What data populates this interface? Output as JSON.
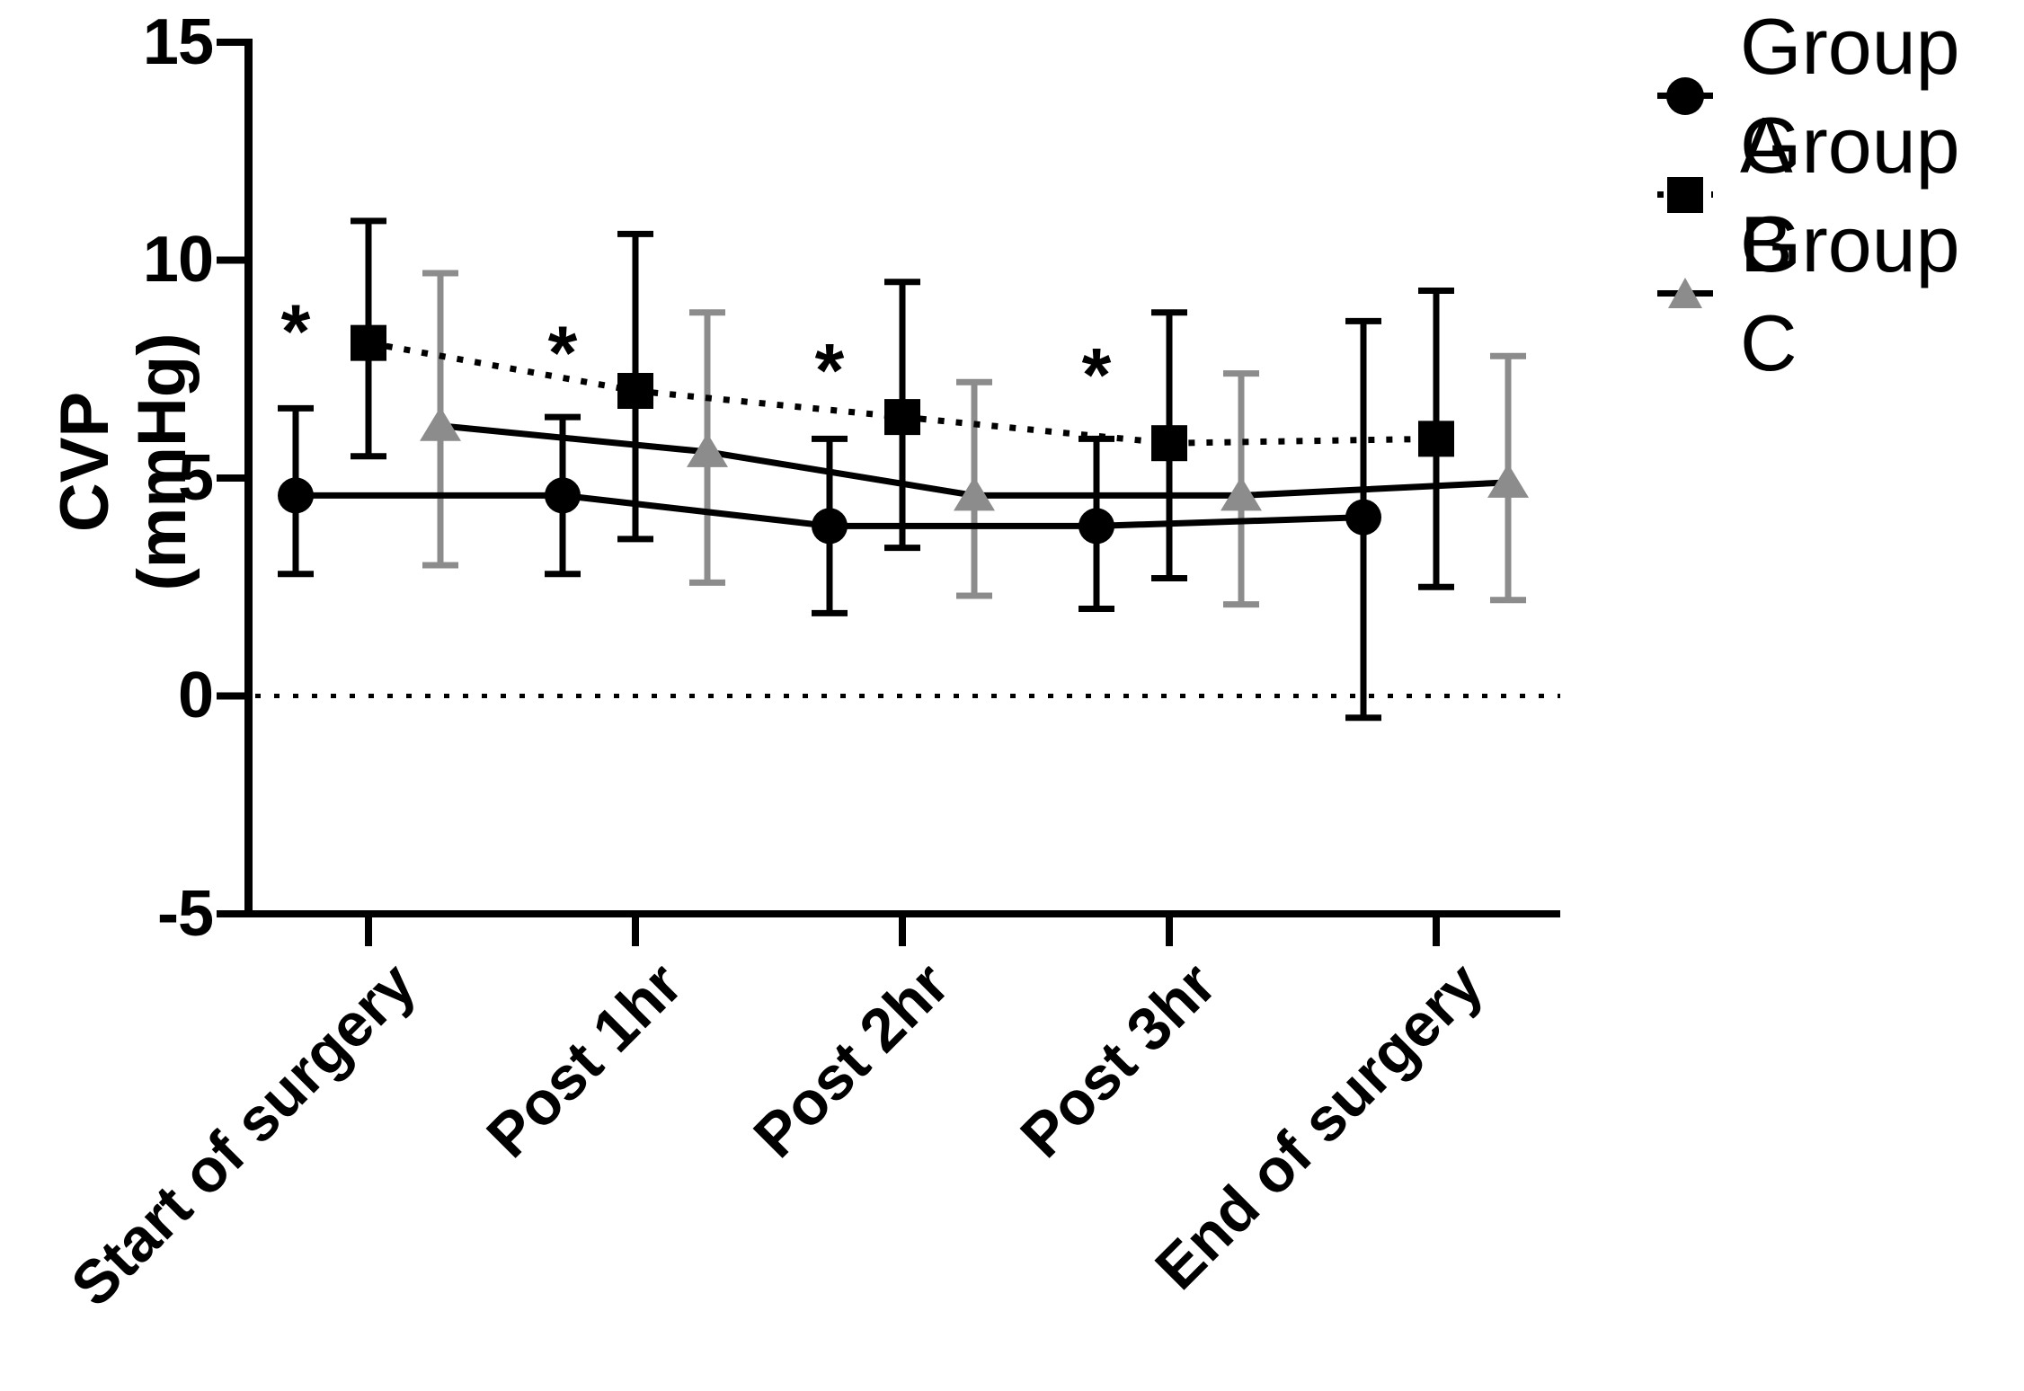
{
  "chart_data": {
    "type": "line",
    "title": "",
    "xlabel": "",
    "ylabel": "CVP (mmHg)",
    "ylim": [
      -5,
      15
    ],
    "yticks": [
      15,
      10,
      5,
      0,
      -5
    ],
    "grid": false,
    "zero_reference_line": "dotted",
    "legend_position": "top-right",
    "categories": [
      "Start of surgery",
      "Post 1hr",
      "Post 2hr",
      "Post 3hr",
      "End of surgery"
    ],
    "series": [
      {
        "name": "Group A",
        "marker": "circle",
        "marker_color": "#000000",
        "line_color": "#000000",
        "line_style": "solid",
        "error_bar_color": "#000000",
        "values": [
          4.6,
          4.6,
          3.9,
          3.9,
          4.1
        ],
        "err_upper": [
          6.6,
          6.4,
          5.9,
          5.9,
          8.6
        ],
        "err_lower": [
          2.8,
          2.8,
          1.9,
          2.0,
          -0.5
        ]
      },
      {
        "name": "Group B",
        "marker": "square",
        "marker_color": "#000000",
        "line_color": "#000000",
        "line_style": "dotted",
        "error_bar_color": "#000000",
        "values": [
          8.1,
          7.0,
          6.4,
          5.8,
          5.9
        ],
        "err_upper": [
          10.9,
          10.6,
          9.5,
          8.8,
          9.3
        ],
        "err_lower": [
          5.5,
          3.6,
          3.4,
          2.7,
          2.5
        ]
      },
      {
        "name": "Group C",
        "marker": "triangle",
        "marker_color": "#8c8c8c",
        "line_color": "#000000",
        "line_style": "solid",
        "error_bar_color": "#8c8c8c",
        "values": [
          6.2,
          5.6,
          4.6,
          4.6,
          4.9
        ],
        "err_upper": [
          9.7,
          8.8,
          7.2,
          7.4,
          7.8
        ],
        "err_lower": [
          3.0,
          2.6,
          2.3,
          2.1,
          2.2
        ]
      }
    ],
    "significance_marks": [
      {
        "category_index": 0,
        "symbol": "*",
        "y": 8.6
      },
      {
        "category_index": 1,
        "symbol": "*",
        "y": 8.1
      },
      {
        "category_index": 2,
        "symbol": "*",
        "y": 7.7
      },
      {
        "category_index": 3,
        "symbol": "*",
        "y": 7.6
      }
    ]
  }
}
